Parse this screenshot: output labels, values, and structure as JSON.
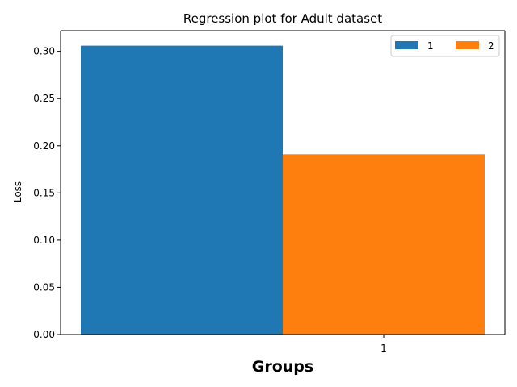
{
  "chart_data": {
    "type": "bar",
    "title": "Regression plot for Adult dataset",
    "xlabel": "Groups",
    "ylabel": "Loss",
    "categories": [
      "1"
    ],
    "series": [
      {
        "name": "1",
        "values": [
          0.306
        ],
        "color": "#1f77b4"
      },
      {
        "name": "2",
        "values": [
          0.191
        ],
        "color": "#ff7f0e"
      }
    ],
    "ylim": [
      0,
      0.3219
    ],
    "yticks": [
      0.0,
      0.05,
      0.1,
      0.15,
      0.2,
      0.25,
      0.3
    ],
    "ytick_labels": [
      "0.00",
      "0.05",
      "0.10",
      "0.15",
      "0.20",
      "0.25",
      "0.30"
    ],
    "legend_position": "top-right",
    "legend_columns": 2,
    "grid": false
  }
}
